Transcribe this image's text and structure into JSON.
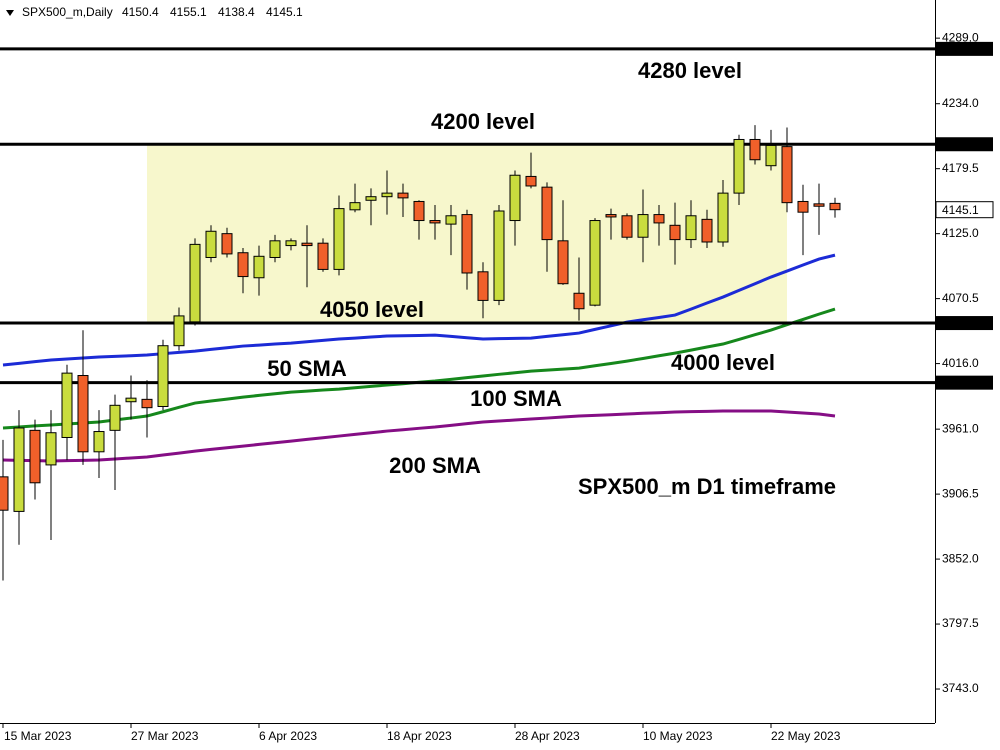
{
  "chart_data": {
    "type": "candlestick",
    "title": "SPX500_m,Daily",
    "annotation": "SPX500_m D1 timeframe",
    "categories": [
      "15 Mar 2023",
      null,
      null,
      null,
      null,
      null,
      null,
      null,
      "27 Mar 2023",
      null,
      null,
      null,
      null,
      null,
      null,
      null,
      "6 Apr 2023",
      null,
      null,
      null,
      null,
      null,
      null,
      null,
      "18 Apr 2023",
      null,
      null,
      null,
      null,
      null,
      null,
      null,
      "28 Apr 2023",
      null,
      null,
      null,
      null,
      null,
      null,
      null,
      "10 May 2023",
      null,
      null,
      null,
      null,
      null,
      null,
      null,
      "22 May 2023",
      null,
      null,
      null,
      null
    ],
    "open": [
      3921,
      3892,
      3960,
      3931,
      3954,
      4006,
      3942,
      3960,
      3984,
      3986,
      3980,
      4031,
      4051,
      4105,
      4125,
      4109,
      4088,
      4105,
      4115,
      4117,
      4117,
      4095,
      4145,
      4153,
      4156,
      4159,
      4152,
      4136,
      4133,
      4141,
      4093,
      4069,
      4136,
      4173,
      4164,
      4119,
      4075,
      4065,
      4141,
      4140,
      4122,
      4141,
      4132,
      4120,
      4137,
      4118,
      4159,
      4204,
      4182,
      4198,
      4152,
      4150,
      4150.4
    ],
    "high": [
      3952,
      3977,
      3969,
      3977,
      4015,
      4044,
      3977,
      3990,
      4006,
      4002,
      4036,
      4063,
      4121,
      4132,
      4130,
      4113,
      4115,
      4124,
      4121,
      4132,
      4121,
      4157,
      4167,
      4163,
      4178,
      4167,
      4153,
      4149,
      4149,
      4145,
      4101,
      4149,
      4178,
      4193,
      4168,
      4153,
      4105,
      4138,
      4146,
      4142,
      4162,
      4149,
      4151,
      4153,
      4145,
      4170,
      4208,
      4216,
      4212,
      4214,
      4166,
      4167,
      4155.1
    ],
    "low": [
      3834,
      3864,
      3902,
      3868,
      3935,
      3931,
      3920,
      3910,
      3969,
      3954,
      3977,
      4027,
      4048,
      4101,
      4105,
      4075,
      4073,
      4101,
      4111,
      4080,
      4093,
      4090,
      4143,
      4132,
      4141,
      4139,
      4120,
      4120,
      4107,
      4078,
      4054,
      4065,
      4115,
      4163,
      4093,
      4082,
      4052,
      4064,
      4120,
      4120,
      4101,
      4115,
      4099,
      4113,
      4113,
      4114,
      4149,
      4183,
      4178,
      4143,
      4107,
      4124,
      4138.4
    ],
    "close": [
      3893,
      3962,
      3916,
      3958,
      4008,
      3942,
      3959,
      3981,
      3987,
      3979,
      4031,
      4056,
      4116,
      4127,
      4108,
      4089,
      4106,
      4119,
      4119,
      4115,
      4095,
      4146,
      4151,
      4156,
      4159,
      4155,
      4136,
      4134,
      4140,
      4092,
      4069,
      4144,
      4174,
      4165,
      4120,
      4083,
      4062,
      4136,
      4139,
      4122,
      4141,
      4134,
      4120,
      4140,
      4118,
      4159,
      4204,
      4187,
      4199,
      4151,
      4143,
      4148,
      4145.1
    ],
    "up_color": "#c9dc3e",
    "down_color": "#f0602a",
    "series": [
      {
        "name": "50 SMA",
        "color": "#1c2bd6",
        "values": [
          4014.8,
          4016.2,
          4017.6,
          4019.0,
          4019.8,
          4020.7,
          4021.5,
          4022.1,
          4022.6,
          4023.2,
          4024.3,
          4025.4,
          4026.5,
          4027.9,
          4029.3,
          4030.7,
          4031.5,
          4032.4,
          4033.2,
          4034.3,
          4035.5,
          4036.6,
          4037.4,
          4038.3,
          4039.1,
          4039.4,
          4039.6,
          4039.9,
          4038.8,
          4037.7,
          4036.6,
          4036.9,
          4037.1,
          4037.4,
          4038.8,
          4040.2,
          4041.6,
          4044.7,
          4047.7,
          4050.8,
          4052.8,
          4054.7,
          4056.7,
          4061.7,
          4066.8,
          4071.8,
          4077.4,
          4083.0,
          4088.6,
          4093.6,
          4098.7,
          4103.7,
          4107.0
        ]
      },
      {
        "name": "100 SMA",
        "color": "#16881c",
        "values": [
          3962.0,
          3962.8,
          3963.7,
          3964.5,
          3965.3,
          3966.2,
          3967.0,
          3968.7,
          3970.3,
          3972.0,
          3975.6,
          3979.3,
          3982.9,
          3984.6,
          3986.2,
          3987.9,
          3989.3,
          3990.7,
          3992.1,
          3992.9,
          3993.8,
          3994.6,
          3995.7,
          3996.9,
          3998.0,
          3999.1,
          4000.3,
          4001.4,
          4002.8,
          4004.2,
          4005.6,
          4007.0,
          4008.3,
          4009.7,
          4010.5,
          4011.4,
          4012.2,
          4014.2,
          4016.1,
          4018.1,
          4020.3,
          4022.6,
          4024.8,
          4027.3,
          4029.9,
          4032.4,
          4036.3,
          4040.2,
          4044.1,
          4048.6,
          4053.0,
          4057.5,
          4061.7
        ]
      },
      {
        "name": "200 SMA",
        "color": "#850e85",
        "values": [
          3935.1,
          3934.8,
          3934.6,
          3934.3,
          3934.6,
          3934.8,
          3935.1,
          3936.0,
          3936.8,
          3937.6,
          3939.3,
          3940.9,
          3942.6,
          3944.0,
          3945.4,
          3946.8,
          3948.2,
          3949.6,
          3951.0,
          3952.4,
          3953.8,
          3955.2,
          3956.6,
          3958.0,
          3959.4,
          3960.5,
          3961.7,
          3962.8,
          3964.2,
          3965.6,
          3967.0,
          3967.8,
          3968.7,
          3969.5,
          3970.3,
          3971.2,
          3972.0,
          3972.6,
          3973.1,
          3973.7,
          3974.3,
          3974.8,
          3975.4,
          3975.7,
          3975.9,
          3976.2,
          3976.2,
          3976.2,
          3976.2,
          3975.4,
          3974.5,
          3973.7,
          3972.0
        ]
      }
    ],
    "levels": [
      {
        "value": 4280,
        "label": "4280.0",
        "text": "4280 level"
      },
      {
        "value": 4200,
        "label": "4200.0",
        "text": "4200 level"
      },
      {
        "value": 4050,
        "label": "4050.0",
        "text": "4050 level"
      },
      {
        "value": 4000,
        "label": "4000.0",
        "text": "4000 level"
      }
    ],
    "zone_color": "#f7f7cc",
    "ylim": [
      3714.5,
      4321
    ],
    "yticks": [
      {
        "value": 4289,
        "label": "4289.0"
      },
      {
        "value": 4234,
        "label": "4234.0"
      },
      {
        "value": 4179.5,
        "label": "4179.5"
      },
      {
        "value": 4125,
        "label": "4125.0"
      },
      {
        "value": 4070.5,
        "label": "4070.5"
      },
      {
        "value": 4016,
        "label": "4016.0"
      },
      {
        "value": 3961,
        "label": "3961.0"
      },
      {
        "value": 3906.5,
        "label": "3906.5"
      },
      {
        "value": 3852,
        "label": "3852.0"
      },
      {
        "value": 3797.5,
        "label": "3797.5"
      },
      {
        "value": 3743,
        "label": "3743.0"
      }
    ]
  }
}
